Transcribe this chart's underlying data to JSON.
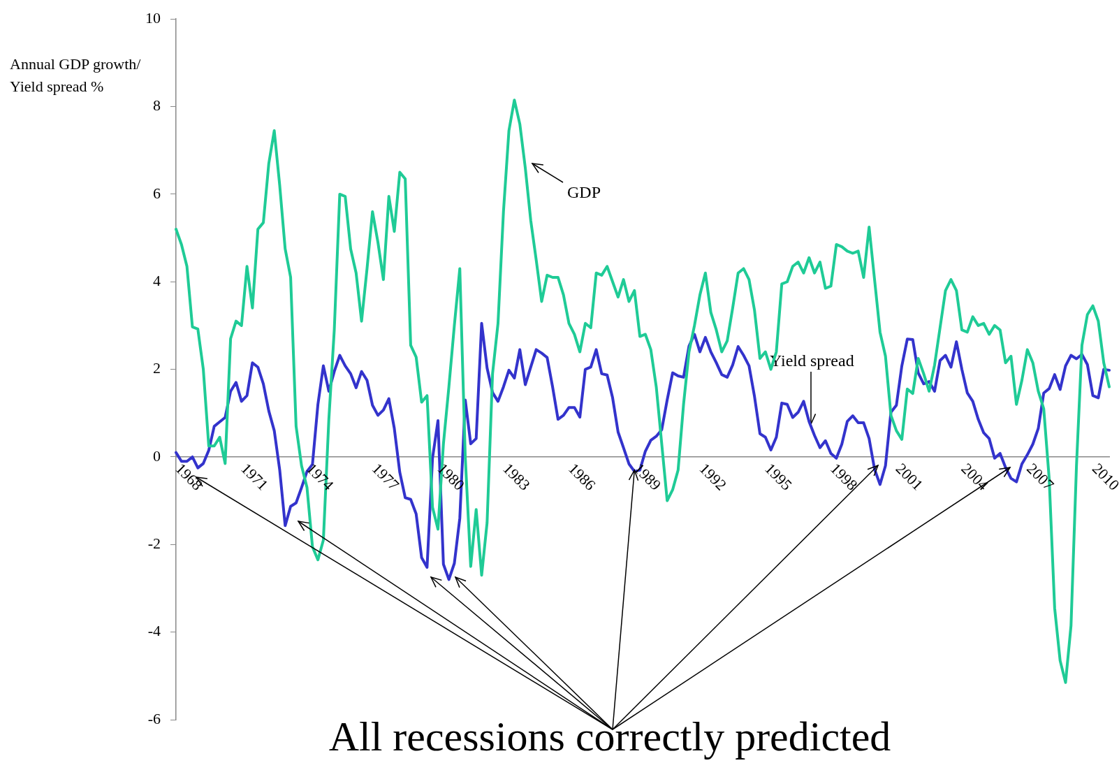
{
  "chart_data": {
    "type": "line",
    "ylabel": "Annual GDP growth/Yield spread %",
    "annotations": [
      {
        "text": "All recessions correctly predicted",
        "x": "1989",
        "y": -0.3
      }
    ],
    "ylim": [
      -6,
      10
    ],
    "yticks": [
      -6,
      -4,
      -2,
      0,
      2,
      4,
      6,
      8,
      10
    ],
    "marker": "none",
    "line_style": "solid",
    "categories": [
      "1968",
      null,
      null,
      null,
      null,
      null,
      null,
      null,
      null,
      null,
      null,
      null,
      "1971",
      null,
      null,
      null,
      null,
      null,
      null,
      null,
      null,
      null,
      null,
      null,
      "1974",
      null,
      null,
      null,
      null,
      null,
      null,
      null,
      null,
      null,
      null,
      null,
      "1977",
      null,
      null,
      null,
      null,
      null,
      null,
      null,
      null,
      null,
      null,
      null,
      "1980",
      null,
      null,
      null,
      null,
      null,
      null,
      null,
      null,
      null,
      null,
      null,
      "1983",
      null,
      null,
      null,
      null,
      null,
      null,
      null,
      null,
      null,
      null,
      null,
      "1986",
      null,
      null,
      null,
      null,
      null,
      null,
      null,
      null,
      null,
      null,
      null,
      "1989",
      null,
      null,
      null,
      null,
      null,
      null,
      null,
      null,
      null,
      null,
      null,
      "1992",
      null,
      null,
      null,
      null,
      null,
      null,
      null,
      null,
      null,
      null,
      null,
      "1995",
      null,
      null,
      null,
      null,
      null,
      null,
      null,
      null,
      null,
      null,
      null,
      "1998",
      null,
      null,
      null,
      null,
      null,
      null,
      null,
      null,
      null,
      null,
      null,
      "2001",
      null,
      null,
      null,
      null,
      null,
      null,
      null,
      null,
      null,
      null,
      null,
      "2004",
      null,
      null,
      null,
      null,
      null,
      null,
      null,
      null,
      null,
      null,
      null,
      "2007",
      null,
      null,
      null,
      null,
      null,
      null,
      null,
      null,
      null,
      null,
      null,
      "2010",
      null,
      null,
      null
    ],
    "series": [
      {
        "name": "GDP",
        "color": "#1fcb96",
        "values": [
          5.2,
          4.85,
          4.35,
          2.97,
          2.92,
          2.0,
          0.25,
          0.25,
          0.45,
          -0.15,
          2.7,
          3.1,
          3.0,
          4.35,
          3.4,
          5.2,
          5.35,
          6.7,
          7.45,
          6.2,
          4.75,
          4.1,
          0.7,
          -0.2,
          -0.7,
          -2.05,
          -2.35,
          -1.9,
          0.85,
          2.9,
          6.0,
          5.95,
          4.75,
          4.2,
          3.1,
          4.3,
          5.6,
          4.9,
          4.05,
          5.95,
          5.15,
          6.5,
          6.35,
          2.55,
          2.28,
          1.25,
          1.4,
          -1.15,
          -1.65,
          0.3,
          1.6,
          3.0,
          4.3,
          0.0,
          -2.5,
          -1.2,
          -2.7,
          -1.5,
          1.9,
          3.05,
          5.6,
          7.45,
          8.15,
          7.6,
          6.6,
          5.4,
          4.5,
          3.55,
          4.15,
          4.1,
          4.1,
          3.7,
          3.05,
          2.8,
          2.4,
          3.05,
          2.95,
          4.2,
          4.15,
          4.35,
          4.0,
          3.65,
          4.05,
          3.55,
          3.8,
          2.75,
          2.8,
          2.45,
          1.6,
          0.3,
          -1.0,
          -0.75,
          -0.3,
          1.2,
          2.4,
          3.0,
          3.7,
          4.2,
          3.3,
          2.9,
          2.4,
          2.65,
          3.4,
          4.2,
          4.3,
          4.05,
          3.35,
          2.25,
          2.4,
          2.0,
          2.4,
          3.95,
          4.0,
          4.35,
          4.45,
          4.2,
          4.55,
          4.2,
          4.45,
          3.85,
          3.9,
          4.85,
          4.8,
          4.7,
          4.65,
          4.7,
          4.1,
          5.25,
          4.05,
          2.85,
          2.3,
          0.95,
          0.6,
          0.4,
          1.55,
          1.45,
          2.25,
          1.9,
          1.5,
          2.1,
          2.95,
          3.8,
          4.05,
          3.8,
          2.9,
          2.85,
          3.2,
          3.0,
          3.05,
          2.8,
          3.0,
          2.9,
          2.15,
          2.3,
          1.2,
          1.75,
          2.45,
          2.15,
          1.5,
          1.1,
          -0.5,
          -3.45,
          -4.65,
          -5.15,
          -3.85,
          -0.2,
          2.55,
          3.25,
          3.45,
          3.1,
          2.15,
          1.6
        ]
      },
      {
        "name": "Yield spread",
        "color": "#3333cc",
        "values": [
          0.1,
          -0.1,
          -0.1,
          0.0,
          -0.25,
          -0.15,
          0.15,
          0.7,
          0.8,
          0.9,
          1.5,
          1.7,
          1.27,
          1.4,
          2.15,
          2.05,
          1.67,
          1.05,
          0.6,
          -0.3,
          -1.57,
          -1.13,
          -1.05,
          -0.7,
          -0.33,
          -0.17,
          1.2,
          2.08,
          1.5,
          1.95,
          2.32,
          2.08,
          1.9,
          1.58,
          1.95,
          1.75,
          1.18,
          0.95,
          1.07,
          1.33,
          0.65,
          -0.35,
          -0.93,
          -0.97,
          -1.3,
          -2.3,
          -2.52,
          -0.03,
          0.83,
          -2.45,
          -2.8,
          -2.43,
          -1.4,
          1.3,
          0.3,
          0.42,
          3.05,
          2.03,
          1.47,
          1.27,
          1.6,
          1.98,
          1.8,
          2.45,
          1.65,
          2.05,
          2.45,
          2.37,
          2.27,
          1.6,
          0.86,
          0.95,
          1.13,
          1.13,
          0.91,
          2.0,
          2.05,
          2.45,
          1.9,
          1.87,
          1.35,
          0.57,
          0.21,
          -0.16,
          -0.33,
          -0.3,
          0.13,
          0.38,
          0.47,
          0.62,
          1.3,
          1.92,
          1.85,
          1.82,
          2.53,
          2.8,
          2.4,
          2.73,
          2.4,
          2.15,
          1.88,
          1.82,
          2.1,
          2.52,
          2.32,
          2.08,
          1.38,
          0.53,
          0.45,
          0.16,
          0.45,
          1.23,
          1.2,
          0.9,
          1.02,
          1.27,
          0.81,
          0.49,
          0.21,
          0.37,
          0.08,
          -0.03,
          0.29,
          0.81,
          0.94,
          0.78,
          0.78,
          0.42,
          -0.28,
          -0.63,
          -0.2,
          1.02,
          1.18,
          2.08,
          2.69,
          2.68,
          1.92,
          1.67,
          1.72,
          1.5,
          2.2,
          2.32,
          2.05,
          2.63,
          2.0,
          1.46,
          1.27,
          0.86,
          0.55,
          0.42,
          -0.03,
          0.08,
          -0.24,
          -0.49,
          -0.57,
          -0.16,
          0.05,
          0.29,
          0.65,
          1.46,
          1.56,
          1.88,
          1.54,
          2.08,
          2.32,
          2.24,
          2.34,
          2.11,
          1.4,
          1.35,
          2.0,
          1.98
        ]
      }
    ]
  }
}
